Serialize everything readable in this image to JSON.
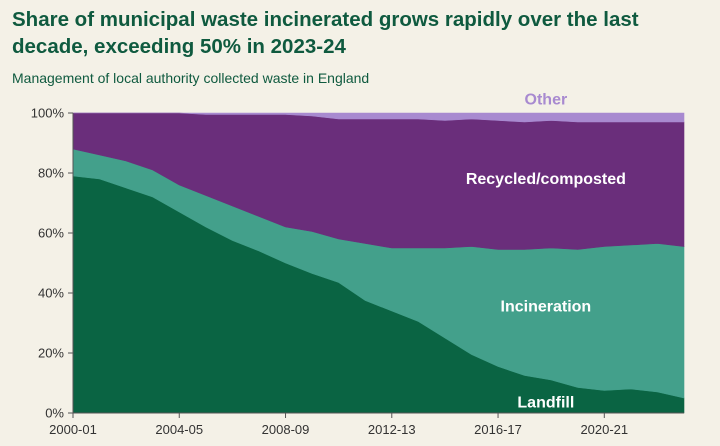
{
  "title": "Share of municipal waste incinerated grows rapidly over the last decade, exceeding 50% in 2023-24",
  "subtitle": "Management of local authority collected waste in England",
  "colors": {
    "landfill": "#0a6443",
    "incineration": "#43a08b",
    "recycled": "#6a2e7b",
    "other": "#a88ad0",
    "background": "#f4f1e7",
    "label_light": "#ffffff",
    "label_other": "#a88ad0"
  },
  "chart_data": {
    "type": "area",
    "stacked": true,
    "xlabel": "",
    "ylabel": "",
    "ylim": [
      0,
      100
    ],
    "y_ticks": [
      "0%",
      "20%",
      "40%",
      "60%",
      "80%",
      "100%"
    ],
    "x_ticks": [
      "2000-01",
      "2004-05",
      "2008-09",
      "2012-13",
      "2016-17",
      "2020-21"
    ],
    "x_tick_indices": [
      0,
      4,
      8,
      12,
      16,
      20
    ],
    "categories": [
      "2000-01",
      "2001-02",
      "2002-03",
      "2003-04",
      "2004-05",
      "2005-06",
      "2006-07",
      "2007-08",
      "2008-09",
      "2009-10",
      "2010-11",
      "2011-12",
      "2012-13",
      "2013-14",
      "2014-15",
      "2015-16",
      "2016-17",
      "2017-18",
      "2018-19",
      "2019-20",
      "2020-21",
      "2021-22",
      "2022-23",
      "2023-24"
    ],
    "series": [
      {
        "name": "Landfill",
        "key": "landfill",
        "values": [
          79,
          78,
          75,
          72,
          67,
          62,
          57.5,
          54,
          50,
          46.5,
          43.5,
          37.5,
          34,
          30.5,
          25,
          19.5,
          15.5,
          12.5,
          11,
          8.5,
          7.5,
          8,
          7,
          5
        ]
      },
      {
        "name": "Incineration",
        "key": "incineration",
        "values": [
          9,
          8,
          9,
          9,
          9,
          10.5,
          11.5,
          11.5,
          12,
          14,
          14.5,
          19,
          21,
          24.5,
          30,
          36,
          39,
          42,
          44,
          46,
          48,
          48,
          49.5,
          50.5
        ]
      },
      {
        "name": "Recycled/composted",
        "key": "recycled",
        "values": [
          12,
          14,
          16,
          19,
          24,
          27,
          30.5,
          34,
          37.5,
          38.5,
          40,
          41.5,
          43,
          43,
          42.5,
          42.5,
          43,
          42.5,
          42.5,
          42.5,
          41.5,
          41,
          40.5,
          41.5
        ]
      },
      {
        "name": "Other",
        "key": "other",
        "values": [
          0,
          0,
          0,
          0,
          0,
          0.5,
          0.5,
          0.5,
          0.5,
          1,
          2,
          2,
          2,
          2,
          2.5,
          2,
          2.5,
          3,
          2.5,
          3,
          3,
          3,
          3,
          3
        ]
      }
    ],
    "series_labels": {
      "landfill": "Landfill",
      "incineration": "Incineration",
      "recycled": "Recycled/composted",
      "other": "Other"
    }
  }
}
